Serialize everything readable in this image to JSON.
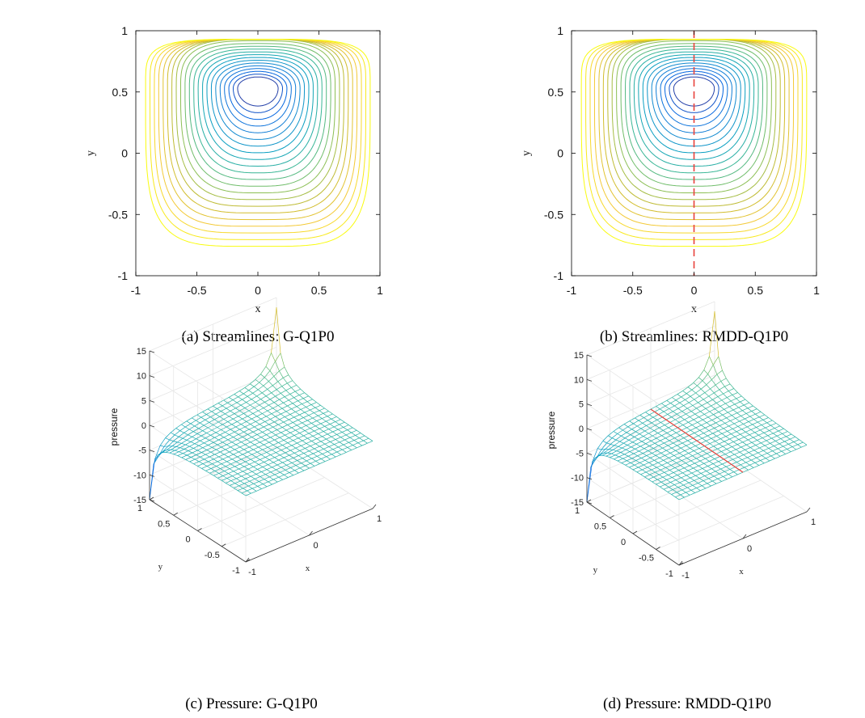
{
  "chart_data": [
    {
      "type": "contour",
      "title": "",
      "caption": "(a) Streamlines: G-Q1P0",
      "xlabel": "x",
      "ylabel": "y",
      "xlim": [
        -1,
        1
      ],
      "ylim": [
        -1,
        1
      ],
      "xticks": [
        "-1",
        "-0.5",
        "0",
        "0.5",
        "1"
      ],
      "yticks": [
        "-1",
        "-0.5",
        "0",
        "0.5",
        "1"
      ],
      "vortex_center": [
        0,
        0.53
      ],
      "contour_levels": 22,
      "colormap": "parula",
      "interface_line": null
    },
    {
      "type": "contour",
      "title": "",
      "caption": "(b) Streamlines: RMDD-Q1P0",
      "xlabel": "x",
      "ylabel": "y",
      "xlim": [
        -1,
        1
      ],
      "ylim": [
        -1,
        1
      ],
      "xticks": [
        "-1",
        "-0.5",
        "0",
        "0.5",
        "1"
      ],
      "yticks": [
        "-1",
        "-0.5",
        "0",
        "0.5",
        "1"
      ],
      "vortex_center": [
        0,
        0.53
      ],
      "contour_levels": 22,
      "colormap": "parula",
      "interface_line": {
        "x": 0,
        "color": "#e8413b",
        "style": "dashed"
      }
    },
    {
      "type": "surface",
      "title": "",
      "caption": "(c) Pressure: G-Q1P0",
      "xlabel": "x",
      "ylabel": "y",
      "zlabel": "pressure",
      "xlim": [
        -1,
        1
      ],
      "ylim": [
        -1,
        1
      ],
      "zlim": [
        -15,
        15
      ],
      "xticks": [
        "-1",
        "0",
        "1"
      ],
      "yticks": [
        "-1",
        "-0.5",
        "0",
        "0.5",
        "1"
      ],
      "zticks": [
        "-15",
        "-10",
        "-5",
        "0",
        "5",
        "10",
        "15"
      ],
      "peak": {
        "x": 1,
        "y": 1,
        "z": 15
      },
      "trough": {
        "x": -1,
        "y": 1,
        "z": -15
      },
      "interface_line": null
    },
    {
      "type": "surface",
      "title": "",
      "caption": "(d) Pressure: RMDD-Q1P0",
      "xlabel": "x",
      "ylabel": "y",
      "zlabel": "pressure",
      "xlim": [
        -1,
        1
      ],
      "ylim": [
        -1,
        1
      ],
      "zlim": [
        -15,
        15
      ],
      "xticks": [
        "-1",
        "0",
        "1"
      ],
      "yticks": [
        "-1",
        "-0.5",
        "0",
        "0.5",
        "1"
      ],
      "zticks": [
        "-15",
        "-10",
        "-5",
        "0",
        "5",
        "10",
        "15"
      ],
      "peak": {
        "x": 1,
        "y": 1,
        "z": 15
      },
      "trough": {
        "x": -1,
        "y": 1,
        "z": -15
      },
      "interface_line": {
        "x": 0,
        "color": "#e8413b",
        "style": "solid"
      }
    }
  ]
}
